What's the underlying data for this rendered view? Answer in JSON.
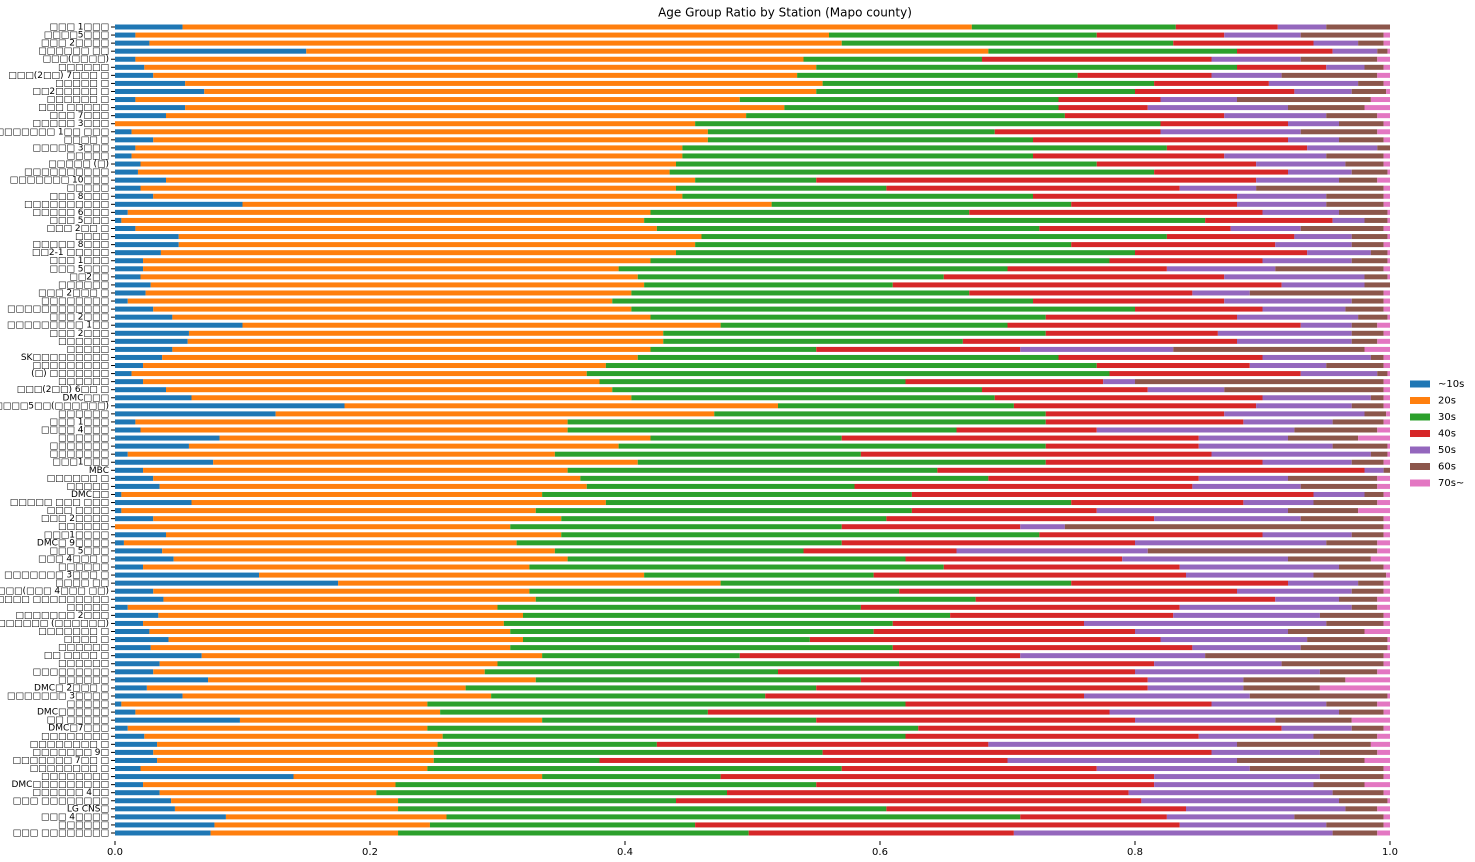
{
  "chart_data": {
    "type": "barh_stacked",
    "title": "Age Group Ratio by Station (Mapo county)",
    "categories": [
      "□□□ 1□□□",
      "□□□□5□□□",
      "□□□ 2□□□□",
      "□□□□□□ □□",
      "□□□(□□□□)",
      "□□□□□□",
      "□□□(2□□) 7□□□ □",
      "□□□□□ □",
      "□□2□□□□□ □",
      "□□□□□□ □",
      "□□□ □□□□□",
      "□□□ 7□□□",
      "□□□□□ 3□□□",
      "□□□□□□□ 1□□ □□□",
      "□□□□ □",
      "□□□□□ 3□□□",
      "□□□□□",
      "□□□□□ (□)",
      "□□□□□□□□□□",
      "□□□□□□□ 10□□□",
      "□□□□□",
      "□□□ 8□□□",
      "□□□□□□□□□□",
      "□□□□□ 6□□□",
      "□□□ 5□□□",
      "□□□ 2□□ □",
      "□□□□",
      "□□□□□ 8□□□",
      "□□2-1 □□□□□",
      "□□□ 1□□□",
      "□□□ 5□□□",
      "□□2□□",
      "□□□□□□",
      "□□□ 2□□□ □",
      "□□□□□□□□",
      "□□□□□□□□□□□□",
      "□□□ 2□□□",
      "□□□□□□□□□ 1□□",
      "□□□ 2□□□",
      "□□□□□□",
      "□□□□□",
      "SK□□□□□□□□□",
      "□□□□□□□□□",
      "(□) □□□□□□□",
      "□□□□□□",
      "□□□(2□□) 6□□ □",
      "DMC□□□",
      "□□□□□□□5□□(□□□□□□)",
      "□□□□□□",
      "□□□ 1□□□",
      "□□□□ 4□□□",
      "□□□□□□",
      "□□□□□□□",
      "□□□□□□□",
      "□□□1□□□",
      "MBC",
      "□□□□□□ □",
      "□□□□□",
      "DMC□□",
      "□□□□□ □□□ □□□",
      "□□□ □□□□",
      "□□□ 2□□□□",
      "□□□□□□",
      "□□□1□□□□",
      "DMC□ 9□□□□",
      "□□□ 5□□□",
      "□□□ 4□□□ □",
      "□□□□□□",
      "□□□□□□□ 3□□□ □",
      "□□□□ □□",
      "□□□□(□□□ 4□□□ □□)",
      "□□□□ □□□□□□□□□",
      "□□□□□",
      "□□□□□□□ 2□□□",
      "□□□□□□ (□□□□□□)",
      "□□□□□□□ □",
      "□□□□ □",
      "□□□□□□",
      "□□ □□□□ □",
      "□□□□□□",
      "□□□□□□□□□",
      "□□□□□□",
      "DMC□ 2□□□ □",
      "□□□□□□□ 3□□□□",
      "□□□□□",
      "DMC□□□□□□",
      "□□ □□□□□",
      "DMC□7□□□",
      "□□□□□□□□",
      "□□□□□□□□ □",
      "□□□□□□□ 9□",
      "□□□□□□□ 7□□ □",
      "□□□□□□□□ □",
      "□□□□□□□□",
      "DMC□□□□□□□□□",
      "□□□□□□ 4□□",
      "□□□ □□□□□□□□",
      "LG CNS□",
      "□□□ 4□□□□",
      "□□□□□□",
      "□□□ □□□□□□□□"
    ],
    "series": [
      {
        "name": "~10s",
        "color": "#1f77b4",
        "values": [
          0.053,
          0.016,
          0.027,
          0.15,
          0.016,
          0.023,
          0.03,
          0.055,
          0.07,
          0.016,
          0.055,
          0.04,
          0,
          0.013,
          0.03,
          0.016,
          0.013,
          0.02,
          0.018,
          0.04,
          0.02,
          0.03,
          0.1,
          0.01,
          0.005,
          0.016,
          0.05,
          0.05,
          0.036,
          0.022,
          0.022,
          0.02,
          0.028,
          0.024,
          0.01,
          0.03,
          0.045,
          0.1,
          0.058,
          0.057,
          0.045,
          0.037,
          0.022,
          0.013,
          0.022,
          0.04,
          0.06,
          0.18,
          0.126,
          0.016,
          0.02,
          0.082,
          0.058,
          0.01,
          0.077,
          0.022,
          0.03,
          0.035,
          0.005,
          0.06,
          0.005,
          0.03,
          0,
          0.04,
          0.007,
          0.037,
          0.046,
          0.022,
          0.113,
          0.175,
          0.03,
          0.038,
          0.01,
          0.034,
          0.022,
          0.027,
          0.042,
          0.028,
          0.068,
          0.035,
          0.03,
          0.073,
          0.025,
          0.053,
          0.005,
          0.016,
          0.098,
          0.01,
          0.023,
          0.033,
          0.03,
          0.033,
          0.02,
          0.14,
          0.022,
          0.035,
          0.044,
          0.047,
          0.087,
          0.078,
          0.075
        ]
      },
      {
        "name": "20s",
        "color": "#ff7f0e",
        "values": [
          0.619,
          0.544,
          0.543,
          0.535,
          0.524,
          0.527,
          0.505,
          0.5,
          0.48,
          0.474,
          0.47,
          0.455,
          0.455,
          0.452,
          0.435,
          0.429,
          0.432,
          0.42,
          0.417,
          0.415,
          0.42,
          0.415,
          0.415,
          0.41,
          0.41,
          0.409,
          0.41,
          0.405,
          0.404,
          0.398,
          0.373,
          0.39,
          0.387,
          0.381,
          0.38,
          0.375,
          0.375,
          0.375,
          0.372,
          0.373,
          0.375,
          0.373,
          0.363,
          0.357,
          0.358,
          0.35,
          0.345,
          0.34,
          0.344,
          0.339,
          0.335,
          0.338,
          0.337,
          0.335,
          0.333,
          0.333,
          0.335,
          0.335,
          0.33,
          0.325,
          0.325,
          0.32,
          0.31,
          0.31,
          0.308,
          0.308,
          0.309,
          0.303,
          0.302,
          0.3,
          0.295,
          0.292,
          0.29,
          0.286,
          0.283,
          0.283,
          0.278,
          0.282,
          0.267,
          0.265,
          0.26,
          0.257,
          0.25,
          0.242,
          0.24,
          0.239,
          0.237,
          0.235,
          0.234,
          0.22,
          0.22,
          0.217,
          0.225,
          0.195,
          0.198,
          0.17,
          0.178,
          0.175,
          0.173,
          0.169,
          0.147
        ]
      },
      {
        "name": "30s",
        "color": "#2ca02c",
        "values": [
          0.16,
          0.21,
          0.26,
          0.195,
          0.14,
          0.33,
          0.22,
          0.26,
          0.25,
          0.25,
          0.215,
          0.25,
          0.365,
          0.225,
          0.255,
          0.38,
          0.275,
          0.33,
          0.38,
          0.095,
          0.165,
          0.275,
          0.235,
          0.25,
          0.44,
          0.3,
          0.365,
          0.295,
          0.36,
          0.36,
          0.305,
          0.24,
          0.195,
          0.265,
          0.33,
          0.395,
          0.31,
          0.225,
          0.3,
          0.235,
          0.13,
          0.33,
          0.385,
          0.41,
          0.24,
          0.29,
          0.285,
          0.185,
          0.26,
          0.375,
          0.305,
          0.15,
          0.335,
          0.24,
          0.32,
          0.29,
          0.32,
          0.21,
          0.29,
          0.365,
          0.295,
          0.255,
          0.26,
          0.375,
          0.255,
          0.195,
          0.265,
          0.325,
          0.18,
          0.275,
          0.29,
          0.345,
          0.285,
          0.335,
          0.305,
          0.285,
          0.225,
          0.3,
          0.155,
          0.315,
          0.23,
          0.255,
          0.275,
          0.215,
          0.375,
          0.21,
          0.215,
          0.385,
          0.363,
          0.172,
          0.305,
          0.13,
          0.325,
          0.14,
          0.33,
          0.275,
          0.218,
          0.383,
          0.45,
          0.208,
          0.275
        ]
      },
      {
        "name": "40s",
        "color": "#d62728",
        "values": [
          0.08,
          0.1,
          0.11,
          0.075,
          0.18,
          0.07,
          0.105,
          0.09,
          0.125,
          0.08,
          0.07,
          0.125,
          0.1,
          0.13,
          0.2,
          0.11,
          0.15,
          0.125,
          0.105,
          0.345,
          0.23,
          0.16,
          0.13,
          0.23,
          0.1,
          0.15,
          0.1,
          0.16,
          0.135,
          0.12,
          0.125,
          0.22,
          0.305,
          0.175,
          0.15,
          0.1,
          0.15,
          0.23,
          0.135,
          0.215,
          0.16,
          0.16,
          0.12,
          0.15,
          0.155,
          0.13,
          0.21,
          0.19,
          0.14,
          0.155,
          0.11,
          0.28,
          0.12,
          0.275,
          0.17,
          0.335,
          0.165,
          0.265,
          0.315,
          0.135,
          0.145,
          0.21,
          0.14,
          0.175,
          0.23,
          0.12,
          0.17,
          0.185,
          0.245,
          0.17,
          0.265,
          0.235,
          0.25,
          0.175,
          0.15,
          0.205,
          0.275,
          0.235,
          0.22,
          0.2,
          0.28,
          0.225,
          0.26,
          0.25,
          0.24,
          0.315,
          0.25,
          0.285,
          0.23,
          0.26,
          0.305,
          0.32,
          0.2,
          0.34,
          0.265,
          0.315,
          0.365,
          0.235,
          0.115,
          0.38,
          0.208
        ]
      },
      {
        "name": "50s",
        "color": "#9467bd",
        "values": [
          0.038,
          0.06,
          0.035,
          0.035,
          0.07,
          0.03,
          0.055,
          0.07,
          0.045,
          0.06,
          0.11,
          0.08,
          0.04,
          0.11,
          0.04,
          0.055,
          0.08,
          0.07,
          0.05,
          0.065,
          0.06,
          0.07,
          0.07,
          0.06,
          0.025,
          0.055,
          0.045,
          0.06,
          0.05,
          0.07,
          0.085,
          0.11,
          0.065,
          0.045,
          0.1,
          0.065,
          0.095,
          0.04,
          0.105,
          0.09,
          0.12,
          0.085,
          0.06,
          0.06,
          0.025,
          0.06,
          0.085,
          0.075,
          0.11,
          0.07,
          0.155,
          0.07,
          0.105,
          0.125,
          0.07,
          0.015,
          0.07,
          0.085,
          0.04,
          0.055,
          0.15,
          0.115,
          0.035,
          0.07,
          0.15,
          0.15,
          0.13,
          0.125,
          0.1,
          0.055,
          0.09,
          0.05,
          0.135,
          0.115,
          0.19,
          0.12,
          0.115,
          0.085,
          0.145,
          0.1,
          0.145,
          0.075,
          0.075,
          0.13,
          0.09,
          0.18,
          0.11,
          0.055,
          0.09,
          0.195,
          0.085,
          0.18,
          0.12,
          0.13,
          0.125,
          0.16,
          0.155,
          0.125,
          0.1,
          0.115,
          0.25
        ]
      },
      {
        "name": "60s",
        "color": "#8c564b",
        "values": [
          0.05,
          0.065,
          0.02,
          0.008,
          0.06,
          0.015,
          0.075,
          0.02,
          0.027,
          0.105,
          0.06,
          0.04,
          0.035,
          0.06,
          0.035,
          0.01,
          0.045,
          0.03,
          0.028,
          0.03,
          0.1,
          0.045,
          0.045,
          0.038,
          0.018,
          0.065,
          0.028,
          0.025,
          0.013,
          0.028,
          0.085,
          0.018,
          0.02,
          0.105,
          0.025,
          0.03,
          0.023,
          0.02,
          0.025,
          0.02,
          0.15,
          0.01,
          0.045,
          0.008,
          0.195,
          0.125,
          0.01,
          0.025,
          0.017,
          0.04,
          0.065,
          0.055,
          0.043,
          0.013,
          0.025,
          0.005,
          0.07,
          0.06,
          0.015,
          0.05,
          0.055,
          0.065,
          0.25,
          0.025,
          0.04,
          0.18,
          0.065,
          0.035,
          0.057,
          0.02,
          0.025,
          0.03,
          0.02,
          0.05,
          0.045,
          0.06,
          0.063,
          0.068,
          0.14,
          0.08,
          0.045,
          0.08,
          0.06,
          0.108,
          0.04,
          0.035,
          0.06,
          0.025,
          0.05,
          0.105,
          0.045,
          0.1,
          0.105,
          0.05,
          0.04,
          0.04,
          0.038,
          0.025,
          0.07,
          0.045,
          0.035
        ]
      },
      {
        "name": "70s~",
        "color": "#e377c2",
        "values": [
          0,
          0.005,
          0.005,
          0.002,
          0.01,
          0.005,
          0.01,
          0.005,
          0.003,
          0.015,
          0.02,
          0.01,
          0.005,
          0.01,
          0.005,
          0,
          0.005,
          0.005,
          0.002,
          0.01,
          0.005,
          0.005,
          0.005,
          0.002,
          0.002,
          0.005,
          0.002,
          0.005,
          0.002,
          0.002,
          0.005,
          0.002,
          0,
          0.005,
          0.005,
          0.005,
          0.002,
          0.01,
          0.005,
          0.01,
          0.02,
          0.005,
          0.005,
          0.002,
          0.005,
          0.005,
          0.005,
          0.005,
          0.003,
          0.005,
          0.01,
          0.025,
          0.002,
          0.002,
          0.005,
          0,
          0.01,
          0.01,
          0.005,
          0.01,
          0.025,
          0.005,
          0.005,
          0.005,
          0.01,
          0.01,
          0.015,
          0.005,
          0.003,
          0.005,
          0.005,
          0.01,
          0.01,
          0.005,
          0.005,
          0.02,
          0.002,
          0.002,
          0.005,
          0.005,
          0.01,
          0.035,
          0.055,
          0.002,
          0.01,
          0.005,
          0.03,
          0.005,
          0.01,
          0.015,
          0.01,
          0.02,
          0.005,
          0.005,
          0.02,
          0.005,
          0.002,
          0.01,
          0.005,
          0.005,
          0.01
        ]
      }
    ],
    "xlim": [
      0,
      1
    ],
    "xticks": [
      {
        "value": 0,
        "label": "0.0"
      },
      0.2,
      0.4,
      0.6,
      0.8,
      {
        "value": 1,
        "label": "1.0"
      }
    ],
    "legend": "right"
  }
}
